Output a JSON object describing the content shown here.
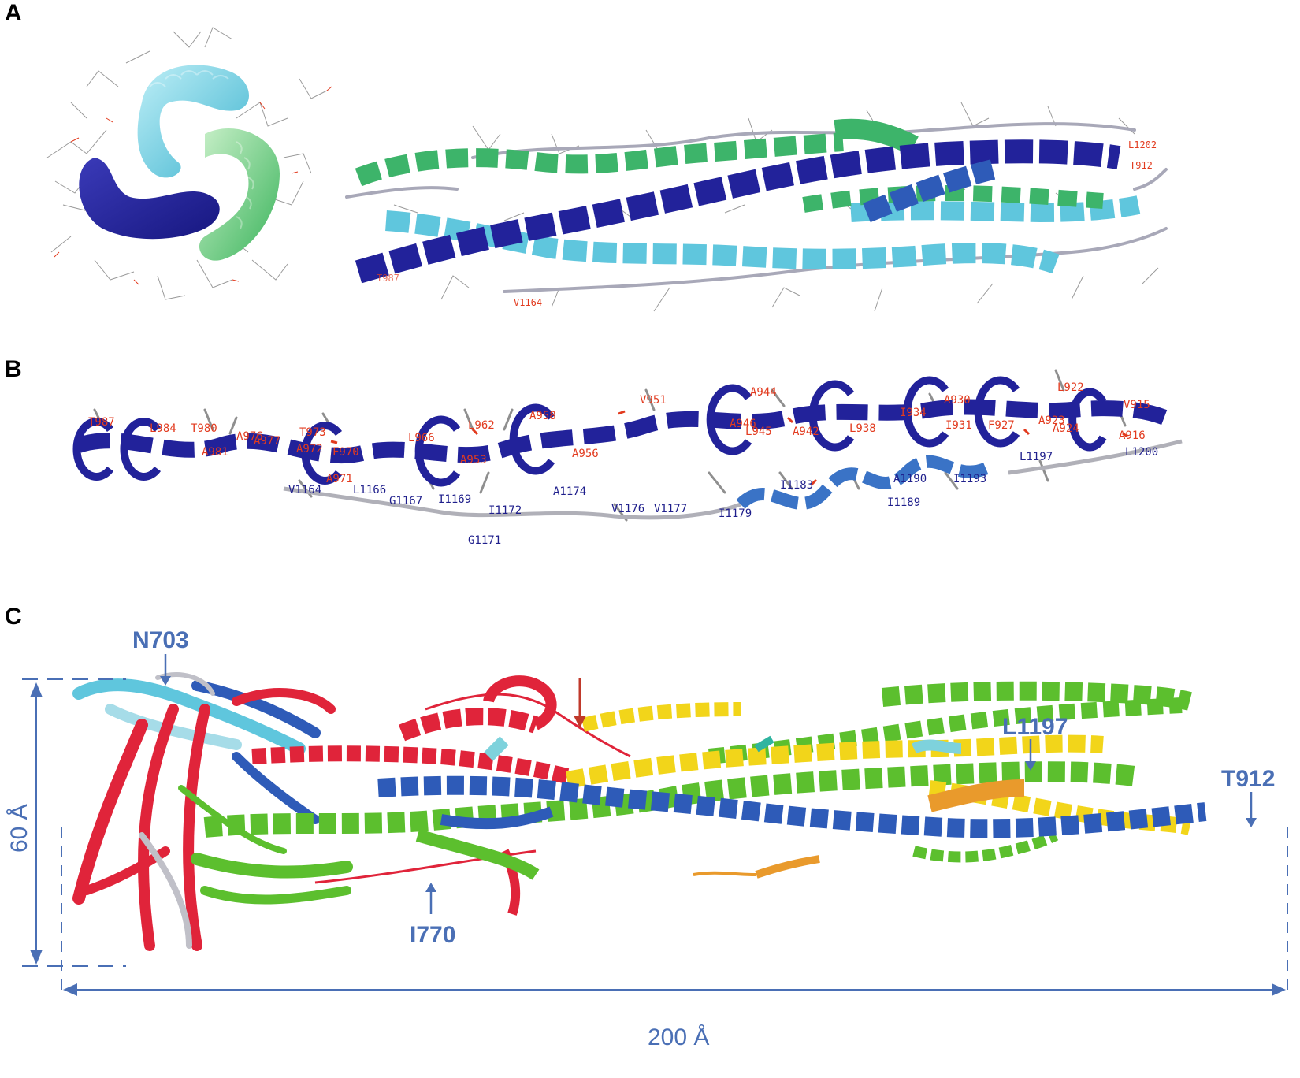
{
  "panels": {
    "a": "A",
    "b": "B",
    "c": "C"
  },
  "panel_a": {
    "labels": [
      "L1202",
      "T912",
      "V1164",
      "T987"
    ]
  },
  "panel_b": {
    "red_labels": [
      "T987",
      "L984",
      "T980",
      "A976",
      "A977",
      "T973",
      "A981",
      "A972",
      "L966",
      "F970",
      "L962",
      "A958",
      "A956",
      "A953",
      "V951",
      "A944",
      "A946",
      "A942",
      "L938",
      "I934",
      "A930",
      "I931",
      "F927",
      "A923",
      "A924",
      "L922",
      "V915",
      "A916",
      "L945",
      "A971"
    ],
    "blue_labels": [
      "V1164",
      "L1166",
      "G1167",
      "I1169",
      "I1172",
      "A1174",
      "V1176",
      "V1177",
      "I1179",
      "I1183",
      "I1189",
      "A1190",
      "I1193",
      "L1197",
      "L1200",
      "G1171"
    ]
  },
  "panel_c": {
    "annotations": [
      "N703",
      "L1197",
      "T912",
      "I770"
    ],
    "dim_height": "60 Å",
    "dim_width": "200 Å"
  },
  "colors": {
    "navy": "#22229a",
    "cyan": "#5fc6dd",
    "green": "#3db46a",
    "red": "#e0243a",
    "yellow": "#f2d51a",
    "blue": "#2e5bb8",
    "lime": "#5cbf2e",
    "orange": "#e99a2c",
    "annotation": "#4a6fb5"
  }
}
